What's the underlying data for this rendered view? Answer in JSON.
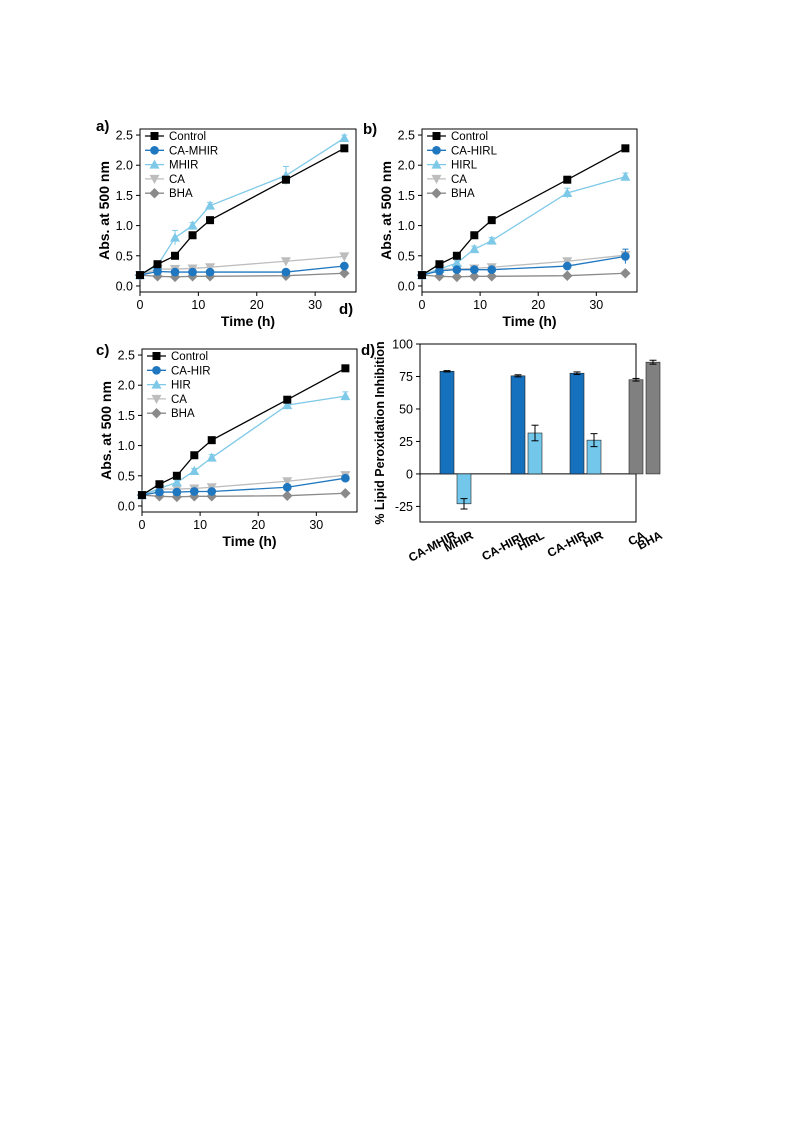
{
  "colors": {
    "Control": "#000000",
    "CA-MHIR": "#1f77c0",
    "CA-HIRL": "#1f77c0",
    "CA-HIR": "#1f77c0",
    "MHIR": "#7ec9e8",
    "HIRL": "#7ec9e8",
    "HIR": "#7ec9e8",
    "CA": "#bdbdbd",
    "BHA": "#8a8a8a",
    "bar_dark_blue": "#1570bd",
    "bar_light_blue": "#72c7ea",
    "bar_gray": "#808080"
  },
  "chart_data": [
    {
      "panel": "a)",
      "type": "line",
      "xlabel": "Time (h)",
      "ylabel": "Abs. at 500 nm",
      "xlim": [
        0,
        37
      ],
      "ylim": [
        -0.1,
        2.6
      ],
      "xticks": [
        "0",
        "10",
        "20",
        "30"
      ],
      "yticks": [
        "0.0",
        "0.5",
        "1.0",
        "1.5",
        "2.0",
        "2.5"
      ],
      "legend_position": "top-left",
      "series": [
        {
          "name": "Control",
          "marker": "square",
          "x": [
            0,
            3,
            6,
            9,
            12,
            25,
            35
          ],
          "y": [
            0.18,
            0.36,
            0.5,
            0.84,
            1.09,
            1.76,
            2.28
          ],
          "err": [
            0,
            0.02,
            0.03,
            0.03,
            0.03,
            0.05,
            0.04
          ]
        },
        {
          "name": "CA-MHIR",
          "marker": "circle",
          "x": [
            0,
            3,
            6,
            9,
            12,
            25,
            35
          ],
          "y": [
            0.18,
            0.24,
            0.23,
            0.23,
            0.23,
            0.23,
            0.33
          ],
          "err": [
            0,
            0.02,
            0.02,
            0.02,
            0.02,
            0.03,
            0.04
          ]
        },
        {
          "name": "MHIR",
          "marker": "triangle-up",
          "x": [
            0,
            3,
            6,
            9,
            12,
            25,
            35
          ],
          "y": [
            0.18,
            0.34,
            0.8,
            1.0,
            1.33,
            1.83,
            2.45
          ],
          "err": [
            0,
            0.03,
            0.12,
            0.05,
            0.05,
            0.15,
            0.05
          ]
        },
        {
          "name": "CA",
          "marker": "triangle-down",
          "x": [
            0,
            3,
            6,
            9,
            12,
            25,
            35
          ],
          "y": [
            0.18,
            0.28,
            0.28,
            0.29,
            0.31,
            0.41,
            0.49
          ],
          "err": [
            0,
            0.02,
            0.03,
            0.02,
            0.02,
            0.04,
            0.05
          ]
        },
        {
          "name": "BHA",
          "marker": "diamond",
          "x": [
            0,
            3,
            6,
            9,
            12,
            25,
            35
          ],
          "y": [
            0.18,
            0.16,
            0.15,
            0.16,
            0.16,
            0.17,
            0.21
          ],
          "err": [
            0,
            0.01,
            0.01,
            0.01,
            0.01,
            0.01,
            0.02
          ]
        }
      ]
    },
    {
      "panel": "b)",
      "type": "line",
      "xlabel": "Time (h)",
      "ylabel": "Abs. at 500 nm",
      "xlim": [
        0,
        37
      ],
      "ylim": [
        -0.1,
        2.6
      ],
      "xticks": [
        "0",
        "10",
        "20",
        "30"
      ],
      "yticks": [
        "0.0",
        "0.5",
        "1.0",
        "1.5",
        "2.0",
        "2.5"
      ],
      "legend_position": "top-left",
      "series": [
        {
          "name": "Control",
          "marker": "square",
          "x": [
            0,
            3,
            6,
            9,
            12,
            25,
            35
          ],
          "y": [
            0.18,
            0.36,
            0.5,
            0.84,
            1.09,
            1.76,
            2.28
          ],
          "err": [
            0,
            0.02,
            0.03,
            0.03,
            0.03,
            0.05,
            0.04
          ]
        },
        {
          "name": "CA-HIRL",
          "marker": "circle",
          "x": [
            0,
            3,
            6,
            9,
            12,
            25,
            35
          ],
          "y": [
            0.18,
            0.25,
            0.27,
            0.27,
            0.27,
            0.33,
            0.49
          ],
          "err": [
            0,
            0.02,
            0.02,
            0.02,
            0.02,
            0.03,
            0.12
          ]
        },
        {
          "name": "HIRL",
          "marker": "triangle-up",
          "x": [
            0,
            3,
            6,
            9,
            12,
            25,
            35
          ],
          "y": [
            0.18,
            0.28,
            0.38,
            0.61,
            0.75,
            1.54,
            1.81
          ],
          "err": [
            0,
            0.02,
            0.04,
            0.05,
            0.05,
            0.08,
            0.06
          ]
        },
        {
          "name": "CA",
          "marker": "triangle-down",
          "x": [
            0,
            3,
            6,
            9,
            12,
            25,
            35
          ],
          "y": [
            0.18,
            0.28,
            0.28,
            0.29,
            0.31,
            0.41,
            0.51
          ],
          "err": [
            0,
            0.02,
            0.03,
            0.02,
            0.02,
            0.04,
            0.05
          ]
        },
        {
          "name": "BHA",
          "marker": "diamond",
          "x": [
            0,
            3,
            6,
            9,
            12,
            25,
            35
          ],
          "y": [
            0.18,
            0.16,
            0.15,
            0.16,
            0.16,
            0.17,
            0.21
          ],
          "err": [
            0,
            0.01,
            0.01,
            0.01,
            0.01,
            0.01,
            0.02
          ]
        }
      ]
    },
    {
      "panel": "c)",
      "type": "line",
      "xlabel": "Time (h)",
      "ylabel": "Abs. at 500 nm",
      "xlim": [
        0,
        37
      ],
      "ylim": [
        -0.1,
        2.6
      ],
      "xticks": [
        "0",
        "10",
        "20",
        "30"
      ],
      "yticks": [
        "0.0",
        "0.5",
        "1.0",
        "1.5",
        "2.0",
        "2.5"
      ],
      "legend_position": "top-left",
      "series": [
        {
          "name": "Control",
          "marker": "square",
          "x": [
            0,
            3,
            6,
            9,
            12,
            25,
            35
          ],
          "y": [
            0.18,
            0.36,
            0.5,
            0.84,
            1.09,
            1.76,
            2.28
          ],
          "err": [
            0,
            0.02,
            0.03,
            0.03,
            0.03,
            0.05,
            0.04
          ]
        },
        {
          "name": "CA-HIR",
          "marker": "circle",
          "x": [
            0,
            3,
            6,
            9,
            12,
            25,
            35
          ],
          "y": [
            0.18,
            0.23,
            0.23,
            0.24,
            0.24,
            0.31,
            0.46
          ],
          "err": [
            0,
            0.02,
            0.02,
            0.02,
            0.02,
            0.03,
            0.04
          ]
        },
        {
          "name": "HIR",
          "marker": "triangle-up",
          "x": [
            0,
            3,
            6,
            9,
            12,
            25,
            35
          ],
          "y": [
            0.18,
            0.29,
            0.39,
            0.58,
            0.8,
            1.67,
            1.82
          ],
          "err": [
            0,
            0.02,
            0.04,
            0.04,
            0.05,
            0.07,
            0.07
          ]
        },
        {
          "name": "CA",
          "marker": "triangle-down",
          "x": [
            0,
            3,
            6,
            9,
            12,
            25,
            35
          ],
          "y": [
            0.18,
            0.28,
            0.28,
            0.29,
            0.31,
            0.41,
            0.51
          ],
          "err": [
            0,
            0.02,
            0.03,
            0.02,
            0.02,
            0.04,
            0.05
          ]
        },
        {
          "name": "BHA",
          "marker": "diamond",
          "x": [
            0,
            3,
            6,
            9,
            12,
            25,
            35
          ],
          "y": [
            0.18,
            0.16,
            0.15,
            0.16,
            0.16,
            0.17,
            0.21
          ],
          "err": [
            0,
            0.01,
            0.01,
            0.01,
            0.01,
            0.01,
            0.02
          ]
        }
      ]
    },
    {
      "panel": "d)",
      "type": "bar",
      "ylabel": "% Lipid Peroxidation Inhibition",
      "ylim": [
        -37,
        100
      ],
      "yticks": [
        "-25",
        "0",
        "25",
        "50",
        "75",
        "100"
      ],
      "categories": [
        "CA-MHIR",
        "MHIR",
        "CA-HIRL",
        "HIRL",
        "CA-HIR",
        "HIR",
        "CA",
        "BHA"
      ],
      "values": [
        79,
        -23,
        75.5,
        31.5,
        77.5,
        26,
        72.5,
        86
      ],
      "errors": [
        0.5,
        4,
        0.8,
        6,
        1,
        5,
        1,
        1.5
      ]
    }
  ]
}
